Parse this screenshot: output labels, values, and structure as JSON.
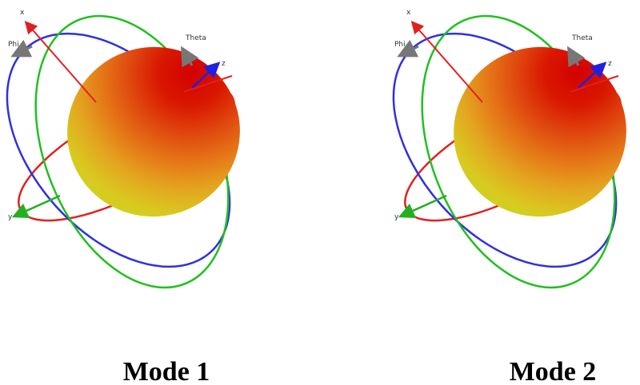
{
  "panels": [
    {
      "labels": {
        "x": "x",
        "y": "y",
        "z": "z",
        "phi": "Phi",
        "theta": "Theta"
      },
      "caption": "Mode 1"
    },
    {
      "labels": {
        "x": "x",
        "y": "y",
        "z": "z",
        "phi": "Phi",
        "theta": "Theta"
      },
      "caption": "Mode 2"
    }
  ]
}
